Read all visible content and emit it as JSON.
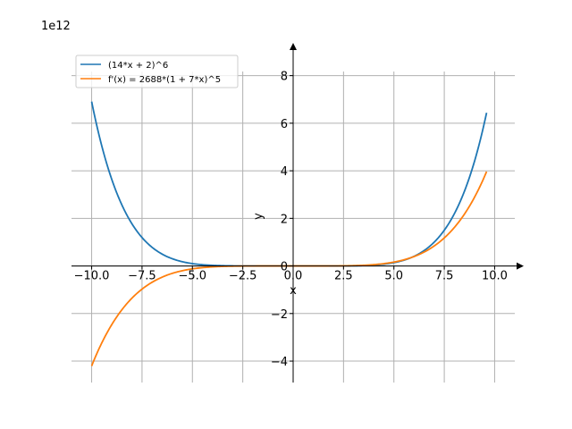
{
  "chart_data": {
    "type": "line",
    "title": "",
    "xlabel": "x",
    "ylabel": "y",
    "y_offset_text": "1e12",
    "xlim": [
      -11.0,
      11.0
    ],
    "ylim": [
      -4.9,
      9.0
    ],
    "y_scale_factor": 1000000000000.0,
    "grid": true,
    "legend_position": "upper-left",
    "x_ticks": [
      -10.0,
      -7.5,
      -5.0,
      -2.5,
      0.0,
      2.5,
      5.0,
      7.5,
      10.0
    ],
    "x_tick_labels": [
      "−10.0",
      "−7.5",
      "−5.0",
      "−2.5",
      "0.0",
      "2.5",
      "5.0",
      "7.5",
      "10.0"
    ],
    "y_ticks": [
      -4,
      -2,
      0,
      2,
      4,
      6,
      8
    ],
    "y_tick_labels": [
      "−4",
      "−2",
      "0",
      "2",
      "4",
      "6",
      "8"
    ],
    "x_range": [
      -10.0,
      9.6
    ],
    "series": [
      {
        "name": "(14*x + 2)^6",
        "color": "#1f77b4",
        "x": [
          -10.0,
          -9.0,
          -8.0,
          -7.0,
          -6.0,
          -5.0,
          -4.0,
          -3.0,
          -2.0,
          -1.0,
          0.0,
          1.0,
          2.0,
          3.0,
          4.0,
          5.0,
          6.0,
          7.0,
          8.0,
          9.0,
          9.6
        ],
        "y": [
          6.94,
          3.53,
          1.62,
          0.6638,
          0.2397,
          0.07196,
          0.01575,
          0.002147,
          0.0001331,
          1e-06,
          0.0,
          1.51e-06,
          0.0002154,
          0.003315,
          0.02167,
          0.08867,
          0.2786,
          0.7329,
          1.702,
          3.598,
          6.42
        ]
      },
      {
        "name": "f'(x) = 2688*(1 + 7*x)^5",
        "color": "#ff7f0e",
        "x": [
          -10.0,
          -9.0,
          -8.0,
          -7.0,
          -6.0,
          -5.0,
          -4.0,
          -3.0,
          -2.0,
          -1.0,
          0.0,
          1.0,
          2.0,
          3.0,
          4.0,
          5.0,
          6.0,
          7.0,
          8.0,
          9.0,
          9.6
        ],
        "y": [
          -4.21,
          -2.425,
          -1.262,
          -0.5899,
          -0.2406,
          -0.08183,
          -0.02117,
          -0.003443,
          -0.0002672,
          -2.09e-05,
          0.0,
          8.81e-05,
          0.002045,
          0.01392,
          0.05509,
          0.1599,
          0.3802,
          0.7855,
          1.4638,
          2.5214,
          3.97
        ]
      }
    ]
  }
}
